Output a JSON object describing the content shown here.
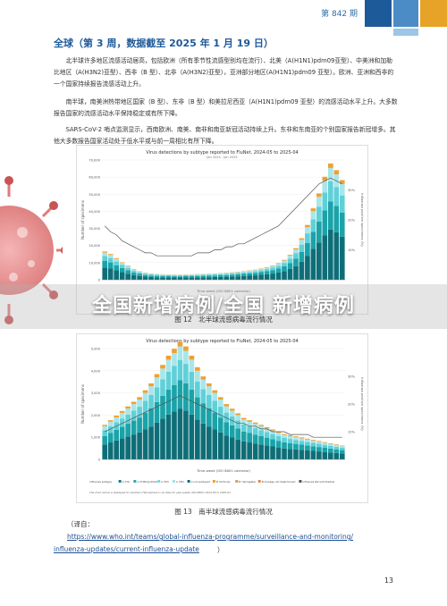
{
  "header": {
    "issue": "第 842 期"
  },
  "section": {
    "title": "全球（第 3 周，数据截至 2025 年 1 月 19 日）"
  },
  "paragraphs": [
    "北半球许多地区流感活动居高，包括欧洲（所有季节性流感型别均在流行）、北美（A(H1N1)pdm09亚型）、中美洲和加勒比地区（A(H3N2)亚型）、西非（B 型）、北非（A(H3N2)亚型），亚洲部分地区(A(H1N1)pdm09 亚型）。欧洲、亚洲和西非的一个国家持续报告流感活动上升。",
    "南半球，南美洲热带地区国家（B 型）、东非（B 型）和美拉尼西亚（A(H1N1)pdm09 亚型）的流感活动水平上升。大多数报告国家的流感活动水平保持稳定或有所下降。",
    "SARS-CoV-2 哨点监测显示，西南欧洲、南美、南非和南亚新冠活动持续上升。东非和东南亚的个别国家报告新冠增多。其他大多数报告国家活动处于低水平或与前一周相比有所下降。"
  ],
  "overlay": {
    "title": "全国新增病例/全国 新增病例"
  },
  "figures": [
    {
      "caption": "图 12　北半球流感病毒流行情况"
    },
    {
      "caption": "图 13　南半球流感病毒流行情况"
    }
  ],
  "source": {
    "label": "（译自：",
    "url_line1": "https://www.who.int/teams/global-influenza-programme/surveillance-and-monitoring/",
    "url_line2": "influenza-updates/current-influenza-update",
    "close": "）"
  },
  "page_number": "13",
  "colors": {
    "teal_dark": "#0e6e78",
    "teal": "#1aa3a8",
    "cyan": "#5fd0d8",
    "light": "#a8e6ea",
    "orange": "#f0a030",
    "line": "#555555",
    "accent": "#1d5a99"
  },
  "chart_data": [
    {
      "type": "bar",
      "title": "Virus detections by subtype reported to FluNet, 2024-05 to 2025-04",
      "subtitle": "Jan 2024 - Jan 2025",
      "xlabel": "Time-week (ISO 8601 calendar)",
      "ylabel": "Number of specimens",
      "ylabel_right": "Influenza positive specimens (%)",
      "ylim": [
        0,
        75000
      ],
      "y_ticks": [
        "0",
        "10,000",
        "20,000",
        "30,000",
        "40,000",
        "50,000",
        "60,000",
        "70,000"
      ],
      "y2_ticks": [
        "10%",
        "20%",
        "30%"
      ],
      "stack_totals": [
        17000,
        15500,
        13000,
        10500,
        8500,
        6500,
        5200,
        4300,
        3800,
        3500,
        3300,
        3200,
        3100,
        3100,
        3200,
        3300,
        3400,
        3500,
        3600,
        3800,
        4000,
        4200,
        4500,
        4800,
        5200,
        5600,
        6100,
        6800,
        7600,
        8600,
        10000,
        12000,
        15000,
        19000,
        25000,
        33000,
        43000,
        52000,
        62000,
        70000,
        66000,
        60000
      ],
      "positive_pct": [
        18,
        16,
        15,
        13,
        12,
        11,
        10,
        9,
        9,
        8,
        8,
        8,
        8,
        8,
        8,
        8,
        9,
        9,
        9,
        10,
        10,
        11,
        11,
        12,
        12,
        13,
        14,
        15,
        16,
        17,
        18,
        20,
        22,
        24,
        26,
        28,
        30,
        32,
        33,
        34,
        33,
        32
      ]
    },
    {
      "type": "bar",
      "title": "Virus detections by subtype reported to FluNet, 2024-05 to 2025-04",
      "xlabel": "Time-week (ISO 8601 calendar)",
      "ylabel": "Number of specimens",
      "ylabel_right": "Influenza positive specimens (%)",
      "ylim": [
        0,
        5000
      ],
      "y_ticks": [
        "0",
        "1,000",
        "2,000",
        "3,000",
        "4,000",
        "5,000"
      ],
      "y2_ticks": [
        "10%",
        "20%",
        "30%"
      ],
      "legend_items": [
        "Influenza subtype",
        "A (H1)",
        "A (H1N1)pdm09",
        "A (H3)",
        "A (H5)",
        "A not subtyped",
        "B (Victoria)",
        "B (Yamagata)",
        "B (lineage not determined)",
        "Influenza Percent Positive"
      ],
      "note": "The chart above is displayed for Southern Hemisphere in all sites for year-weeks (ISO 8601) 2024-05 to 2025-04",
      "stack_totals": [
        1500,
        1700,
        1900,
        2100,
        2300,
        2500,
        2700,
        3000,
        3300,
        3700,
        4100,
        4500,
        4800,
        5100,
        4900,
        4500,
        4000,
        3600,
        3300,
        3000,
        2700,
        2400,
        2200,
        2000,
        1800,
        1700,
        1600,
        1500,
        1400,
        1300,
        1200,
        1100,
        1050,
        1000,
        950,
        900,
        850,
        800,
        750,
        700,
        650,
        600
      ],
      "positive_pct": [
        10,
        11,
        12,
        13,
        14,
        15,
        16,
        17,
        18,
        19,
        20,
        21,
        22,
        23,
        22,
        21,
        20,
        19,
        18,
        17,
        16,
        15,
        14,
        13,
        13,
        12,
        12,
        11,
        11,
        10,
        10,
        10,
        9,
        9,
        9,
        9,
        8,
        8,
        8,
        8,
        8,
        8
      ]
    }
  ]
}
